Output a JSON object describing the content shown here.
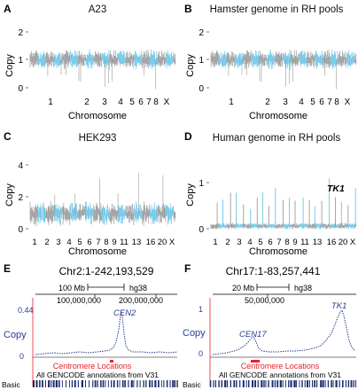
{
  "colors": {
    "gray": "#9a9a9a",
    "blue": "#6cc4e6",
    "dark_blue": "#2b3d93",
    "red": "#e8202a",
    "navy": "#1b2a6b"
  },
  "panels": {
    "A": {
      "label": "A",
      "title": "A23",
      "ylabel": "Copy",
      "xlabel": "Chromosome",
      "yticks": [
        "0",
        "1",
        "2"
      ],
      "xticks": [
        "1",
        "2",
        "3",
        "4",
        "5",
        "6",
        "7",
        "8",
        "X"
      ]
    },
    "B": {
      "label": "B",
      "title": "Hamster genome in RH pools",
      "ylabel": "Copy",
      "xlabel": "Chromosome",
      "yticks": [
        "0",
        "1",
        "2"
      ],
      "xticks": [
        "1",
        "2",
        "3",
        "4",
        "5",
        "6",
        "7",
        "8",
        "X"
      ]
    },
    "C": {
      "label": "C",
      "title": "HEK293",
      "ylabel": "Copy",
      "xlabel": "Chromosome",
      "yticks": [
        "0",
        "2",
        "4"
      ],
      "xticks": [
        "1",
        "2",
        "3",
        "4",
        "5",
        "6",
        "7",
        "8",
        "9",
        "11",
        "13",
        "16",
        "20",
        "X"
      ]
    },
    "D": {
      "label": "D",
      "title": "Human genome in RH pools",
      "ylabel": "Copy",
      "xlabel": "Chromosome",
      "yticks": [
        "0",
        "1"
      ],
      "xticks": [
        "1",
        "2",
        "3",
        "4",
        "5",
        "6",
        "7",
        "8",
        "9",
        "11",
        "13",
        "16",
        "20",
        "X"
      ],
      "annotation": "TK1"
    },
    "E": {
      "label": "E",
      "region": "Chr2:1-242,193,529",
      "scale": "100 Mb",
      "assembly": "hg38",
      "coord1": "100,000,000",
      "coord2": "200,000,000",
      "ylabel": "Copy",
      "ytop": "0.44",
      "ybottom": "0",
      "peak_label": "CEN2",
      "track1": "Centromere Locations",
      "track2": "All GENCODE annotations from V31",
      "track3": "Basic"
    },
    "F": {
      "label": "F",
      "region": "Chr17:1-83,257,441",
      "scale": "20 Mb",
      "assembly": "hg38",
      "coord1": "50,000,000",
      "ylabel": "Copy",
      "ytop": "1",
      "ybottom": "0",
      "peak_label": "CEN17",
      "peak_label2": "TK1",
      "track1": "Centromere Locations",
      "track2": "All GENCODE annotations from V31",
      "track3": "Basic"
    }
  }
}
